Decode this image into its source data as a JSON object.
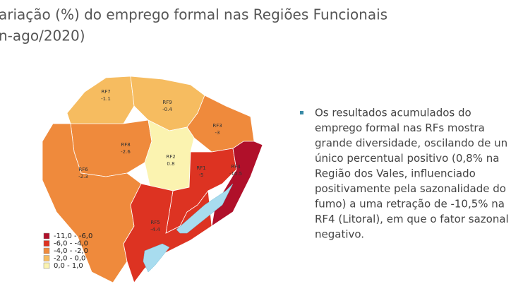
{
  "header": {
    "title": "ariação (%) do emprego formal nas Regiões Funcionais",
    "subtitle": "n-ago/2020)"
  },
  "map": {
    "regions": [
      {
        "name": "RF7",
        "value": -1.1,
        "color": "#f6bc60"
      },
      {
        "name": "RF9",
        "value": -0.4,
        "color": "#f6bc60"
      },
      {
        "name": "RF3",
        "value": -3,
        "color": "#ef8a3c"
      },
      {
        "name": "RF8",
        "value": -2.6,
        "color": "#ef8a3c"
      },
      {
        "name": "RF6",
        "value": -2.3,
        "color": "#ef8a3c"
      },
      {
        "name": "RF2",
        "value": 0.8,
        "color": "#fbf3b0"
      },
      {
        "name": "RF1",
        "value": -5,
        "color": "#dd3322"
      },
      {
        "name": "RF4",
        "value": -10.5,
        "color": "#b0102a"
      },
      {
        "name": "RF5",
        "value": -4.4,
        "color": "#dd3322"
      }
    ],
    "legend": [
      {
        "label": "-11,0 - -6,0",
        "color": "#b0102a"
      },
      {
        "label": "-6,0 - -4,0",
        "color": "#dd3322"
      },
      {
        "label": "-4,0 - -2,0",
        "color": "#ef8a3c"
      },
      {
        "label": "-2,0 -  0,0",
        "color": "#f6bc60"
      },
      {
        "label": " 0,0 -  1,0",
        "color": "#fbf3b0"
      }
    ]
  },
  "bullet": {
    "lines": [
      "Os resultados acumulados do",
      "emprego formal nas RFs mostra",
      "grande diversidade, oscilando de un",
      "único percentual positivo (0,8% na",
      "Região dos Vales, influenciado",
      "positivamente pela sazonalidade do",
      "fumo) a uma retração de -10,5% na",
      "RF4 (Litoral), em que o fator sazonal",
      "negativo."
    ]
  }
}
